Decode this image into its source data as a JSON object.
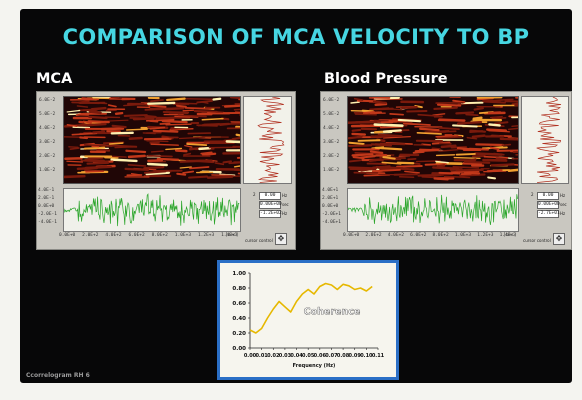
{
  "slide": {
    "title": "COMPARISON OF MCA VELOCITY TO BP",
    "footer": "Ccorrelogram RH 6"
  },
  "panels": [
    {
      "label": "MCA",
      "y_ticks": [
        "6.0E-2",
        "5.0E-2",
        "4.0E-2",
        "3.0E-2",
        "2.0E-2",
        "1.0E-2"
      ],
      "wave_ticks": [
        "4.0E-1",
        "2.0E-1",
        "0.0E+0",
        "-2.0E-1",
        "-4.0E-1"
      ],
      "x_ticks": [
        "0.0E+0",
        "2.0E+2",
        "4.0E+2",
        "6.0E+2",
        "8.0E+2",
        "1.0E+3",
        "1.2E+3",
        "1.4E+3"
      ],
      "x_unit": "[sec]",
      "readouts": [
        "0.00",
        "0.00E+00",
        "-1.2E+02"
      ],
      "readout_units": [
        "Hz",
        "sec",
        "Hz"
      ],
      "ctrl_label": "cursor control",
      "ctrl_number": "2"
    },
    {
      "label": "Blood Pressure",
      "y_ticks": [
        "6.0E-2",
        "5.0E-2",
        "4.0E-2",
        "3.0E-2",
        "2.0E-2",
        "1.0E-2"
      ],
      "wave_ticks": [
        "4.0E+1",
        "2.0E+1",
        "0.0E+0",
        "-2.0E+1",
        "-4.0E+1"
      ],
      "x_ticks": [
        "0.0E+0",
        "2.0E+2",
        "4.0E+2",
        "6.0E+2",
        "8.0E+2",
        "1.0E+3",
        "1.2E+3",
        "1.4E+3"
      ],
      "x_unit": "[sec]",
      "readouts": [
        "0.00",
        "0.00E+00",
        "-2.7E+01"
      ],
      "readout_units": [
        "Hz",
        "sec",
        "Hz"
      ],
      "ctrl_label": "cursor control",
      "ctrl_number": "2"
    }
  ],
  "chart_data": {
    "type": "line",
    "title": "Coherence",
    "xlabel": "Frequency (Hz)",
    "ylabel": "",
    "x_ticks": [
      "0.00",
      "0.01",
      "0.02",
      "0.03",
      "0.04",
      "0.05",
      "0.06",
      "0.07",
      "0.08",
      "0.09",
      "0.10",
      "0.11"
    ],
    "y_ticks": [
      "0.00",
      "0.20",
      "0.40",
      "0.60",
      "0.80",
      "1.00"
    ],
    "xlim": [
      0,
      0.11
    ],
    "ylim": [
      0,
      1
    ],
    "x": [
      0.0,
      0.005,
      0.01,
      0.015,
      0.02,
      0.025,
      0.03,
      0.035,
      0.04,
      0.045,
      0.05,
      0.055,
      0.06,
      0.065,
      0.07,
      0.075,
      0.08,
      0.085,
      0.09,
      0.095,
      0.1,
      0.105
    ],
    "y": [
      0.24,
      0.2,
      0.26,
      0.4,
      0.52,
      0.62,
      0.55,
      0.48,
      0.62,
      0.72,
      0.78,
      0.72,
      0.82,
      0.86,
      0.84,
      0.78,
      0.85,
      0.83,
      0.78,
      0.8,
      0.76,
      0.82
    ],
    "line_color": "#e6b800"
  },
  "colors": {
    "title": "#46d6e2",
    "spectrogram_bg": "#1a0505",
    "wave": "#2aa52a",
    "coherence_border": "#2b6fc6"
  }
}
